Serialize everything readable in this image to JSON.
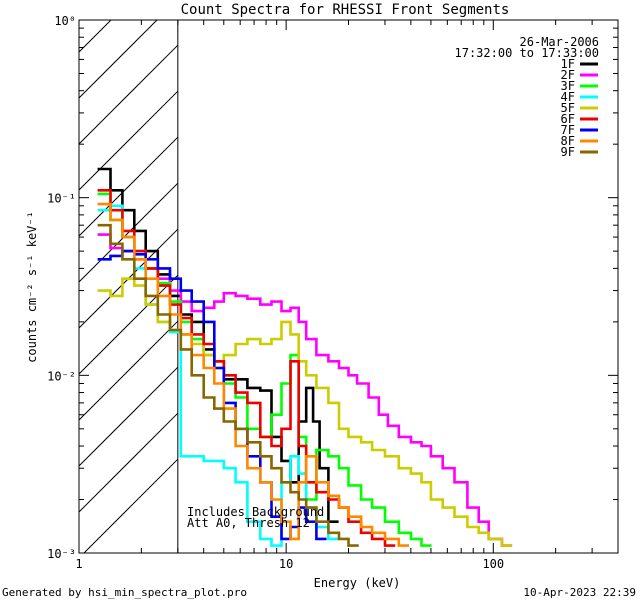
{
  "chart_data": {
    "type": "line",
    "title": "Count Spectra for RHESSI Front Segments",
    "xlabel": "Energy (keV)",
    "ylabel": "counts cm⁻² s⁻¹ keV⁻¹",
    "xscale": "log",
    "yscale": "log",
    "xlim": [
      1,
      400
    ],
    "ylim": [
      0.001,
      1
    ],
    "x_ticks": [
      {
        "value": 1,
        "label": "1"
      },
      {
        "value": 10,
        "label": "10"
      },
      {
        "value": 100,
        "label": "100"
      }
    ],
    "y_ticks": [
      {
        "value": 1,
        "label": "10⁰"
      },
      {
        "value": 0.1,
        "label": "10⁻¹"
      },
      {
        "value": 0.01,
        "label": "10⁻²"
      },
      {
        "value": 0.001,
        "label": "10⁻³"
      }
    ],
    "hatched_region": [
      1,
      3
    ],
    "date": "26-Mar-2006",
    "time_range": "17:32:00 to 17:33:00",
    "annotation_line1": "Includes Background",
    "annotation_line2": "Att A0, Thresh 12",
    "series": [
      {
        "name": "1F",
        "color": "#000000",
        "points": [
          [
            1.23,
            0.145
          ],
          [
            1.42,
            0.11
          ],
          [
            1.62,
            0.085
          ],
          [
            1.85,
            0.065
          ],
          [
            2.1,
            0.05
          ],
          [
            2.4,
            0.037
          ],
          [
            2.75,
            0.028
          ],
          [
            3.1,
            0.022
          ],
          [
            3.5,
            0.02
          ],
          [
            4.0,
            0.014
          ],
          [
            4.5,
            0.012
          ],
          [
            5.0,
            0.0095
          ],
          [
            5.7,
            0.0095
          ],
          [
            6.5,
            0.0085
          ],
          [
            7.5,
            0.0082
          ],
          [
            8.5,
            0.0045
          ],
          [
            9.5,
            0.0033
          ],
          [
            10.5,
            0.0025
          ],
          [
            11.5,
            0.0055
          ],
          [
            12.5,
            0.0085
          ],
          [
            13.5,
            0.0055
          ],
          [
            14.5,
            0.003
          ],
          [
            16,
            0.0015
          ]
        ]
      },
      {
        "name": "2F",
        "color": "#ff00ff",
        "points": [
          [
            1.23,
            0.062
          ],
          [
            1.42,
            0.052
          ],
          [
            1.62,
            0.05
          ],
          [
            1.85,
            0.045
          ],
          [
            2.1,
            0.04
          ],
          [
            2.4,
            0.035
          ],
          [
            2.75,
            0.03
          ],
          [
            3.1,
            0.026
          ],
          [
            3.5,
            0.023
          ],
          [
            4.0,
            0.024
          ],
          [
            4.5,
            0.026
          ],
          [
            5.0,
            0.029
          ],
          [
            5.7,
            0.028
          ],
          [
            6.5,
            0.027
          ],
          [
            7.5,
            0.025
          ],
          [
            8.5,
            0.026
          ],
          [
            9.5,
            0.023
          ],
          [
            10.5,
            0.024
          ],
          [
            11.5,
            0.02
          ],
          [
            12.5,
            0.016
          ],
          [
            14,
            0.013
          ],
          [
            16,
            0.012
          ],
          [
            18,
            0.011
          ],
          [
            20,
            0.01
          ],
          [
            22,
            0.009
          ],
          [
            25,
            0.0075
          ],
          [
            28,
            0.006
          ],
          [
            31,
            0.0052
          ],
          [
            35,
            0.0045
          ],
          [
            40,
            0.0042
          ],
          [
            45,
            0.004
          ],
          [
            50,
            0.0035
          ],
          [
            57,
            0.003
          ],
          [
            65,
            0.0025
          ],
          [
            75,
            0.0018
          ],
          [
            85,
            0.0015
          ],
          [
            95,
            0.0012
          ],
          [
            110,
            0.0011
          ]
        ]
      },
      {
        "name": "3F",
        "color": "#00ff00",
        "points": [
          [
            1.23,
            0.105
          ],
          [
            1.42,
            0.075
          ],
          [
            1.62,
            0.06
          ],
          [
            1.85,
            0.05
          ],
          [
            2.1,
            0.04
          ],
          [
            2.4,
            0.033
          ],
          [
            2.75,
            0.026
          ],
          [
            3.1,
            0.02
          ],
          [
            3.5,
            0.016
          ],
          [
            4.0,
            0.013
          ],
          [
            4.5,
            0.011
          ],
          [
            5.0,
            0.009
          ],
          [
            5.7,
            0.0075
          ],
          [
            6.5,
            0.005
          ],
          [
            7.5,
            0.0045
          ],
          [
            8.5,
            0.006
          ],
          [
            9.5,
            0.009
          ],
          [
            10.5,
            0.013
          ],
          [
            11.5,
            0.0045
          ],
          [
            12.5,
            0.002
          ],
          [
            14,
            0.0038
          ],
          [
            16,
            0.0035
          ],
          [
            18,
            0.003
          ],
          [
            20,
            0.0024
          ],
          [
            23,
            0.002
          ],
          [
            26,
            0.0018
          ],
          [
            30,
            0.0015
          ],
          [
            35,
            0.0013
          ],
          [
            40,
            0.0012
          ],
          [
            45,
            0.0011
          ]
        ]
      },
      {
        "name": "4F",
        "color": "#00ffff",
        "points": [
          [
            1.23,
            0.085
          ],
          [
            1.42,
            0.09
          ],
          [
            1.62,
            0.06
          ],
          [
            1.85,
            0.04
          ],
          [
            2.1,
            0.025
          ],
          [
            2.4,
            0.02
          ],
          [
            2.75,
            0.0175
          ],
          [
            3.1,
            0.0035
          ],
          [
            3.5,
            0.0035
          ],
          [
            4.0,
            0.0033
          ],
          [
            4.5,
            0.0033
          ],
          [
            5.0,
            0.003
          ],
          [
            5.7,
            0.0025
          ],
          [
            6.5,
            0.0015
          ],
          [
            7.5,
            0.0012
          ],
          [
            8.5,
            0.0011
          ],
          [
            9.5,
            0.0025
          ],
          [
            10.5,
            0.0035
          ],
          [
            11.5,
            0.0028
          ],
          [
            12.5,
            0.0018
          ],
          [
            14,
            0.0014
          ],
          [
            16,
            0.0012
          ]
        ]
      },
      {
        "name": "5F",
        "color": "#cccc00",
        "points": [
          [
            1.23,
            0.03
          ],
          [
            1.42,
            0.028
          ],
          [
            1.62,
            0.035
          ],
          [
            1.85,
            0.032
          ],
          [
            2.1,
            0.025
          ],
          [
            2.4,
            0.02
          ],
          [
            2.75,
            0.018
          ],
          [
            3.1,
            0.017
          ],
          [
            3.5,
            0.015
          ],
          [
            4.0,
            0.013
          ],
          [
            4.5,
            0.011
          ],
          [
            5.0,
            0.013
          ],
          [
            5.7,
            0.015
          ],
          [
            6.5,
            0.016
          ],
          [
            7.5,
            0.015
          ],
          [
            8.5,
            0.016
          ],
          [
            9.5,
            0.02
          ],
          [
            10.5,
            0.017
          ],
          [
            11.5,
            0.012
          ],
          [
            12.5,
            0.01
          ],
          [
            14,
            0.0085
          ],
          [
            16,
            0.007
          ],
          [
            18,
            0.005
          ],
          [
            20,
            0.0045
          ],
          [
            23,
            0.0042
          ],
          [
            26,
            0.0038
          ],
          [
            30,
            0.0035
          ],
          [
            35,
            0.003
          ],
          [
            40,
            0.0028
          ],
          [
            45,
            0.0025
          ],
          [
            50,
            0.002
          ],
          [
            57,
            0.0018
          ],
          [
            65,
            0.0016
          ],
          [
            75,
            0.0014
          ],
          [
            85,
            0.0013
          ],
          [
            95,
            0.0012
          ],
          [
            110,
            0.0011
          ]
        ]
      },
      {
        "name": "6F",
        "color": "#ee0000",
        "points": [
          [
            1.23,
            0.11
          ],
          [
            1.42,
            0.085
          ],
          [
            1.62,
            0.065
          ],
          [
            1.85,
            0.05
          ],
          [
            2.1,
            0.04
          ],
          [
            2.4,
            0.032
          ],
          [
            2.75,
            0.025
          ],
          [
            3.1,
            0.021
          ],
          [
            3.5,
            0.017
          ],
          [
            4.0,
            0.015
          ],
          [
            4.5,
            0.012
          ],
          [
            5.0,
            0.01
          ],
          [
            5.7,
            0.008
          ],
          [
            6.5,
            0.007
          ],
          [
            7.5,
            0.0045
          ],
          [
            8.5,
            0.004
          ],
          [
            9.5,
            0.005
          ],
          [
            10.5,
            0.012
          ],
          [
            11.5,
            0.004
          ],
          [
            12.5,
            0.0025
          ],
          [
            14,
            0.0022
          ],
          [
            16,
            0.002
          ],
          [
            18,
            0.0018
          ],
          [
            20,
            0.0015
          ],
          [
            23,
            0.0013
          ],
          [
            26,
            0.0012
          ],
          [
            30,
            0.0011
          ]
        ]
      },
      {
        "name": "7F",
        "color": "#0000ee",
        "points": [
          [
            1.23,
            0.045
          ],
          [
            1.42,
            0.047
          ],
          [
            1.62,
            0.05
          ],
          [
            1.85,
            0.048
          ],
          [
            2.1,
            0.045
          ],
          [
            2.4,
            0.04
          ],
          [
            2.75,
            0.035
          ],
          [
            3.1,
            0.03
          ],
          [
            3.5,
            0.026
          ],
          [
            4.0,
            0.02
          ],
          [
            4.5,
            0.011
          ],
          [
            5.0,
            0.007
          ],
          [
            5.7,
            0.005
          ],
          [
            6.5,
            0.0035
          ],
          [
            7.5,
            0.0025
          ],
          [
            8.5,
            0.0016
          ],
          [
            9.5,
            0.0012
          ],
          [
            10.5,
            0.0014
          ],
          [
            11.5,
            0.0018
          ],
          [
            12.5,
            0.0015
          ],
          [
            14,
            0.0012
          ]
        ]
      },
      {
        "name": "8F",
        "color": "#ff8800",
        "points": [
          [
            1.23,
            0.092
          ],
          [
            1.42,
            0.075
          ],
          [
            1.62,
            0.06
          ],
          [
            1.85,
            0.045
          ],
          [
            2.1,
            0.035
          ],
          [
            2.4,
            0.028
          ],
          [
            2.75,
            0.022
          ],
          [
            3.1,
            0.017
          ],
          [
            3.5,
            0.013
          ],
          [
            4.0,
            0.011
          ],
          [
            4.5,
            0.009
          ],
          [
            5.0,
            0.0065
          ],
          [
            5.7,
            0.004
          ],
          [
            6.5,
            0.003
          ],
          [
            7.5,
            0.0025
          ],
          [
            8.5,
            0.002
          ],
          [
            9.5,
            0.0015
          ],
          [
            10.5,
            0.0012
          ],
          [
            11.5,
            0.0025
          ],
          [
            12.5,
            0.0035
          ],
          [
            14,
            0.0025
          ],
          [
            16,
            0.0021
          ],
          [
            18,
            0.0018
          ],
          [
            20,
            0.0016
          ],
          [
            23,
            0.0014
          ],
          [
            26,
            0.0013
          ],
          [
            30,
            0.0012
          ],
          [
            35,
            0.0011
          ]
        ]
      },
      {
        "name": "9F",
        "color": "#886600",
        "points": [
          [
            1.23,
            0.07
          ],
          [
            1.42,
            0.055
          ],
          [
            1.62,
            0.045
          ],
          [
            1.85,
            0.035
          ],
          [
            2.1,
            0.028
          ],
          [
            2.4,
            0.022
          ],
          [
            2.75,
            0.018
          ],
          [
            3.1,
            0.014
          ],
          [
            3.5,
            0.01
          ],
          [
            4.0,
            0.0075
          ],
          [
            4.5,
            0.0065
          ],
          [
            5.0,
            0.0055
          ],
          [
            5.7,
            0.005
          ],
          [
            6.5,
            0.0042
          ],
          [
            7.5,
            0.0035
          ],
          [
            8.5,
            0.003
          ],
          [
            9.5,
            0.0025
          ],
          [
            10.5,
            0.0022
          ],
          [
            11.5,
            0.002
          ],
          [
            12.5,
            0.0018
          ],
          [
            14,
            0.0015
          ],
          [
            16,
            0.0013
          ],
          [
            18,
            0.0012
          ],
          [
            20,
            0.0011
          ]
        ]
      }
    ]
  },
  "footer": {
    "generated_by": "Generated by hsi_min_spectra_plot.pro",
    "timestamp": "10-Apr-2023 22:39"
  },
  "colors": {
    "background": "#ffffff",
    "axes": "#000000"
  }
}
